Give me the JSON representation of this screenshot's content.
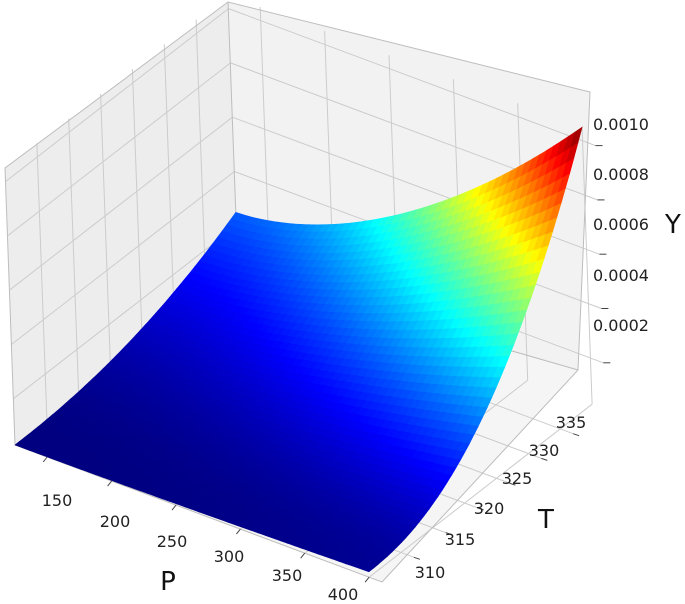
{
  "chart_data": {
    "type": "surface",
    "colormap": "jet",
    "xlabel": "P",
    "ylabel": "T",
    "zlabel": "Y",
    "x_ticks": [
      "150",
      "200",
      "250",
      "300",
      "350",
      "400"
    ],
    "y_ticks": [
      "310",
      "315",
      "320",
      "325",
      "330",
      "335"
    ],
    "z_ticks": [
      "0.0002",
      "0.0004",
      "0.0006",
      "0.0008",
      "0.0010"
    ],
    "xlim": [
      125,
      410
    ],
    "ylim": [
      305,
      340
    ],
    "zlim": [
      3e-05,
      0.00105
    ],
    "grid": true,
    "surface": {
      "P_range": [
        125,
        400
      ],
      "T_range": [
        305,
        340
      ],
      "corners": [
        {
          "P": 125,
          "T": 305,
          "Y": 3e-05
        },
        {
          "P": 400,
          "T": 305,
          "Y": 5e-05
        },
        {
          "P": 125,
          "T": 340,
          "Y": 0.00025
        },
        {
          "P": 400,
          "T": 340,
          "Y": 0.00105
        }
      ],
      "Y_max": 0.00105
    }
  }
}
